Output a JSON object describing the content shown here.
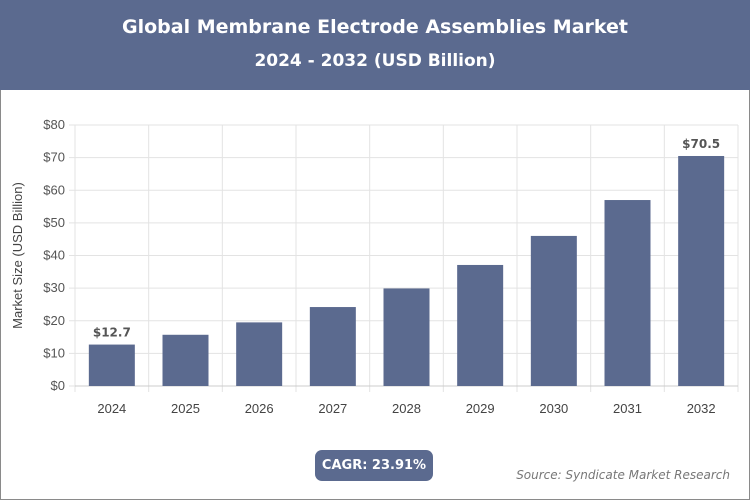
{
  "header": {
    "title": "Global Membrane Electrode Assemblies Market",
    "subtitle": "2024 - 2032 (USD Billion)"
  },
  "chart_data": {
    "type": "bar",
    "title": "Global Membrane Electrode Assemblies Market",
    "subtitle": "2024 - 2032 (USD Billion)",
    "xlabel": "",
    "ylabel": "Market Size (USD Billion)",
    "categories": [
      "2024",
      "2025",
      "2026",
      "2027",
      "2028",
      "2029",
      "2030",
      "2031",
      "2032"
    ],
    "values": [
      12.7,
      15.7,
      19.5,
      24.2,
      29.9,
      37.1,
      46.0,
      57.0,
      70.5
    ],
    "data_labels": {
      "0": "$12.7",
      "8": "$70.5"
    },
    "ylim": [
      0,
      80
    ],
    "yticks": [
      "$0",
      "$10",
      "$20",
      "$30",
      "$40",
      "$50",
      "$60",
      "$70",
      "$80"
    ],
    "grid": true,
    "bar_color": "#5b6a8f"
  },
  "footer": {
    "cagr": "CAGR: 23.91%",
    "source": "Source: Syndicate Market Research"
  }
}
